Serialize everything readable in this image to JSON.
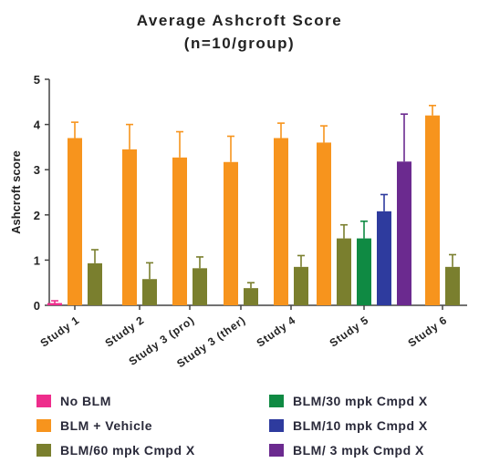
{
  "chart_data": {
    "type": "bar",
    "title": "Average Ashcroft Score",
    "subtitle": "(n=10/group)",
    "xlabel": "",
    "ylabel": "Ashcroft score",
    "ylim": [
      0,
      5
    ],
    "yticks": [
      "0",
      "1",
      "2",
      "3",
      "4",
      "5"
    ],
    "grid": false,
    "legend_position": "bottom",
    "categories": [
      "Study 1",
      "Study 2",
      "Study 3 (pro)",
      "Study 3 (ther)",
      "Study 4",
      "Study 5",
      "Study 6"
    ],
    "series": [
      {
        "name": "No BLM",
        "color": "#ee2d8c",
        "values": [
          0.05,
          null,
          null,
          null,
          null,
          null,
          null
        ],
        "errors": [
          0.05,
          null,
          null,
          null,
          null,
          null,
          null
        ]
      },
      {
        "name": "BLM + Vehicle",
        "color": "#f7941d",
        "values": [
          3.7,
          3.45,
          3.27,
          3.17,
          3.7,
          3.6,
          4.2
        ],
        "errors": [
          0.35,
          0.55,
          0.57,
          0.57,
          0.33,
          0.37,
          0.22
        ]
      },
      {
        "name": "BLM/60 mpk Cmpd X",
        "color": "#7a7f2e",
        "values": [
          0.93,
          0.58,
          0.82,
          0.38,
          0.85,
          1.48,
          0.85
        ],
        "errors": [
          0.3,
          0.36,
          0.25,
          0.12,
          0.25,
          0.3,
          0.27
        ]
      },
      {
        "name": "BLM/30 mpk Cmpd X",
        "color": "#0f8a43",
        "values": [
          null,
          null,
          null,
          null,
          null,
          1.48,
          null
        ],
        "errors": [
          null,
          null,
          null,
          null,
          null,
          0.38,
          null
        ]
      },
      {
        "name": "BLM/10 mpk Cmpd X",
        "color": "#2e3b9e",
        "values": [
          null,
          null,
          null,
          null,
          null,
          2.08,
          null
        ],
        "errors": [
          null,
          null,
          null,
          null,
          null,
          0.37,
          null
        ]
      },
      {
        "name": "BLM/ 3 mpk Cmpd X",
        "color": "#6b2a8f",
        "values": [
          null,
          null,
          null,
          null,
          null,
          3.18,
          null
        ],
        "errors": [
          null,
          null,
          null,
          null,
          null,
          1.05,
          null
        ]
      }
    ],
    "legend_order": [
      0,
      1,
      2,
      3,
      4,
      5
    ]
  }
}
